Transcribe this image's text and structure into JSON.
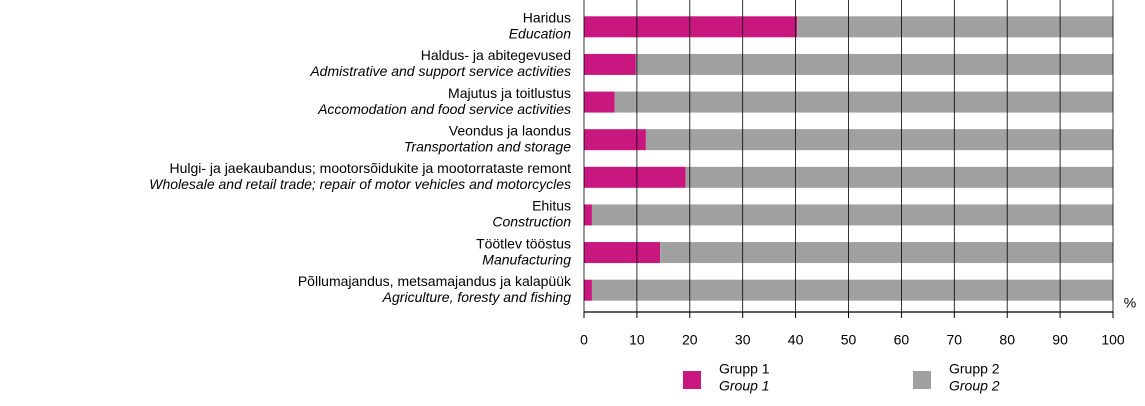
{
  "chart_data": {
    "type": "bar",
    "orientation": "horizontal",
    "stacked": true,
    "categories": [
      "Haridus",
      "Haldus- ja abitegevused",
      "Majutus ja toitlustus",
      "Veondus ja laondus",
      "Hulgi- ja jaekaubandus; mootorsõidukite ja mootorrataste remont",
      "Ehitus",
      "Töötlev tööstus",
      "Põllumajandus, metsamajandus ja kalapüük"
    ],
    "categories_en": [
      "Education",
      "Admistrative and support service activities",
      "Accomodation and food service activities",
      "Transportation and storage",
      "Wholesale and retail trade; repair of motor vehicles and motorcycles",
      "Construction",
      "Manufacturing",
      "Agriculture, foresty and fishing"
    ],
    "series": [
      {
        "name": "Grupp 1",
        "name_en": "Group 1",
        "color": "#c8177f",
        "values": [
          40.3,
          9.8,
          5.8,
          11.7,
          19.2,
          1.5,
          14.4,
          1.5
        ]
      },
      {
        "name": "Grupp 2",
        "name_en": "Group 2",
        "color": "#a0a0a0",
        "values": [
          59.7,
          90.2,
          94.2,
          88.3,
          80.8,
          98.5,
          85.6,
          98.5
        ]
      }
    ],
    "xlim": [
      0,
      100
    ],
    "xticks": [
      0,
      10,
      20,
      30,
      40,
      50,
      60,
      70,
      80,
      90,
      100
    ],
    "x_label": "%",
    "grid": true,
    "legend": "bottom"
  }
}
